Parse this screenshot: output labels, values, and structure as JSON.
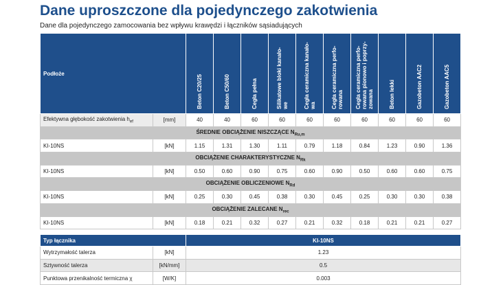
{
  "header": {
    "title": "Dane uproszczone dla pojedynczego zakotwienia",
    "subtitle": "Dane dla pojedynczego zamocowania bez wpływu krawędzi i łączników sąsiadujących"
  },
  "table": {
    "corner": "Podłoże",
    "columns": [
      "Beton C20/25",
      "Beton C50/60",
      "Cegła pełna",
      "Silikatowe bloki kanało-we",
      "Cegła ceramiczna kanało-wa",
      "Cegła ceramiczna perfo-rowana",
      "Cegła ceramiczna perfo-rowana pionowo i poprzy-zowana",
      "Beton lekki",
      "Gazobeton AAC2",
      "Gazobeton AAC5"
    ],
    "depth": {
      "label": "Efektywna głębokość zakotwienia h",
      "sub": "ef",
      "unit": "[mm]",
      "values": [
        "40",
        "40",
        "60",
        "60",
        "60",
        "60",
        "60",
        "60",
        "60",
        "60"
      ]
    },
    "sections": [
      {
        "title": "ŚREDNIE OBCIĄŻENIE NISZCZĄCE N",
        "sub": "Ru,m",
        "row": {
          "label": "KI-10NS",
          "unit": "[kN]",
          "values": [
            "1.15",
            "1.31",
            "1.30",
            "1.11",
            "0.79",
            "1.18",
            "0.84",
            "1.23",
            "0.90",
            "1.36"
          ]
        }
      },
      {
        "title": "OBCIĄŻENIE CHARAKTERYSTYCZNE N",
        "sub": "Rk",
        "row": {
          "label": "KI-10NS",
          "unit": "[kN]",
          "values": [
            "0.50",
            "0.60",
            "0.90",
            "0.75",
            "0.60",
            "0.90",
            "0.50",
            "0.60",
            "0.60",
            "0.75"
          ]
        }
      },
      {
        "title": "OBCIĄŻENIE OBLICZENIOWE N",
        "sub": "Rd",
        "row": {
          "label": "KI-10NS",
          "unit": "[kN]",
          "values": [
            "0.25",
            "0.30",
            "0.45",
            "0.38",
            "0.30",
            "0.45",
            "0.25",
            "0.30",
            "0.30",
            "0.38"
          ]
        }
      },
      {
        "title": "OBCIĄŻENIE ZALECANE N",
        "sub": "rec",
        "row": {
          "label": "KI-10NS",
          "unit": "[kN]",
          "values": [
            "0.18",
            "0.21",
            "0.32",
            "0.27",
            "0.21",
            "0.32",
            "0.18",
            "0.21",
            "0.21",
            "0.27"
          ]
        }
      }
    ]
  },
  "plate_table": {
    "header": [
      "Typ łącznika",
      "KI-10NS"
    ],
    "rows": [
      [
        "Wytrzymałość talerza",
        "[kN]",
        "1.23"
      ],
      [
        "Sztywność talerza",
        "[kN/mm]",
        "0.5"
      ],
      [
        "Punktowa przenikalność termiczna χ",
        "[W/K]",
        "0.003"
      ]
    ]
  }
}
